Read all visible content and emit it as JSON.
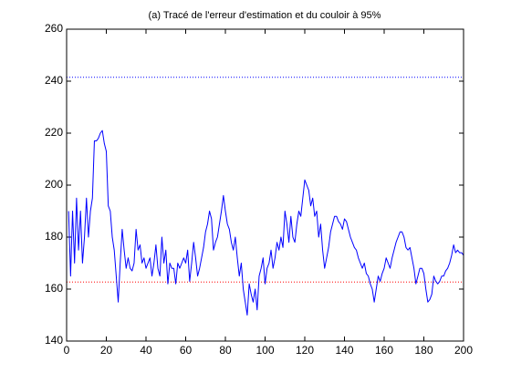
{
  "chart_data": {
    "type": "line",
    "title": "(a) Tracé de l'erreur d'estimation et du couloir à 95%",
    "x": [
      1,
      2,
      3,
      4,
      5,
      6,
      7,
      8,
      9,
      10,
      11,
      12,
      13,
      14,
      15,
      16,
      17,
      18,
      19,
      20,
      21,
      22,
      23,
      24,
      25,
      26,
      27,
      28,
      29,
      30,
      31,
      32,
      33,
      34,
      35,
      36,
      37,
      38,
      39,
      40,
      41,
      42,
      43,
      44,
      45,
      46,
      47,
      48,
      49,
      50,
      51,
      52,
      53,
      54,
      55,
      56,
      57,
      58,
      59,
      60,
      61,
      62,
      63,
      64,
      65,
      66,
      67,
      68,
      69,
      70,
      71,
      72,
      73,
      74,
      75,
      76,
      77,
      78,
      79,
      80,
      81,
      82,
      83,
      84,
      85,
      86,
      87,
      88,
      89,
      90,
      91,
      92,
      93,
      94,
      95,
      96,
      97,
      98,
      99,
      100,
      101,
      102,
      103,
      104,
      105,
      106,
      107,
      108,
      109,
      110,
      111,
      112,
      113,
      114,
      115,
      116,
      117,
      118,
      119,
      120,
      121,
      122,
      123,
      124,
      125,
      126,
      127,
      128,
      129,
      130,
      131,
      132,
      133,
      134,
      135,
      136,
      137,
      138,
      139,
      140,
      141,
      142,
      143,
      144,
      145,
      146,
      147,
      148,
      149,
      150,
      151,
      152,
      153,
      154,
      155,
      156,
      157,
      158,
      159,
      160,
      161,
      162,
      163,
      164,
      165,
      166,
      167,
      168,
      169,
      170,
      171,
      172,
      173,
      174,
      175,
      176,
      177,
      178,
      179,
      180,
      181,
      182,
      183,
      184,
      185,
      186,
      187,
      188,
      189,
      190,
      191,
      192,
      193,
      194,
      195,
      196,
      197,
      198,
      199,
      200
    ],
    "series": [
      {
        "color": "#0000ff",
        "values": [
          190,
          165,
          190,
          170,
          195,
          175,
          190,
          170,
          180,
          195,
          180,
          190,
          195,
          217,
          217,
          218,
          220,
          221,
          216,
          213,
          192,
          190,
          180,
          175,
          165,
          155,
          170,
          183,
          175,
          168,
          172,
          168,
          167,
          170,
          183,
          175,
          177,
          170,
          172,
          168,
          170,
          172,
          165,
          170,
          177,
          168,
          165,
          180,
          170,
          175,
          162,
          170,
          168,
          168,
          162,
          170,
          168,
          170,
          172,
          170,
          175,
          163,
          170,
          178,
          172,
          165,
          168,
          172,
          176,
          182,
          185,
          190,
          187,
          175,
          178,
          180,
          185,
          190,
          196,
          190,
          185,
          183,
          178,
          175,
          180,
          172,
          165,
          170,
          160,
          155,
          150,
          162,
          158,
          155,
          160,
          152,
          165,
          168,
          172,
          162,
          168,
          170,
          175,
          168,
          172,
          178,
          175,
          180,
          176,
          190,
          185,
          178,
          188,
          180,
          178,
          185,
          190,
          188,
          195,
          202,
          200,
          198,
          192,
          195,
          188,
          190,
          180,
          185,
          175,
          168,
          172,
          176,
          182,
          185,
          188,
          188,
          186,
          185,
          183,
          187,
          186,
          183,
          180,
          178,
          176,
          175,
          172,
          170,
          168,
          170,
          166,
          165,
          162,
          160,
          155,
          160,
          165,
          163,
          166,
          168,
          172,
          170,
          168,
          172,
          175,
          178,
          180,
          182,
          182,
          180,
          176,
          175,
          176,
          172,
          168,
          162,
          165,
          168,
          168,
          166,
          160,
          155,
          156,
          158,
          165,
          163,
          162,
          163,
          165,
          165,
          167,
          168,
          170,
          173,
          177,
          174,
          175,
          174,
          174,
          173
        ]
      }
    ],
    "reference_lines": [
      {
        "value": 241.5,
        "color": "#0000ff",
        "style": "dotted"
      },
      {
        "value": 162.7,
        "color": "#ff0000",
        "style": "dotted"
      }
    ],
    "xlim": [
      0,
      200
    ],
    "xticks": [
      0,
      20,
      40,
      60,
      80,
      100,
      120,
      140,
      160,
      180,
      200
    ],
    "ylim": [
      140,
      260
    ],
    "yticks": [
      140,
      160,
      180,
      200,
      220,
      240,
      260
    ]
  }
}
